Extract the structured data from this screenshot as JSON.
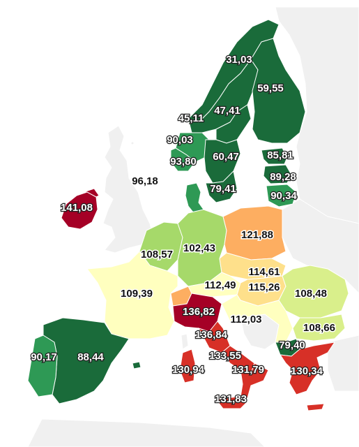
{
  "colors": {
    "background": "#ffffff",
    "non_data_land": "#f0f0f0",
    "border": "#ffffff",
    "dark_green": "#1a6b3a",
    "mid_green": "#2e9955",
    "light_green": "#a6d96a",
    "yellow_green": "#d9ef8b",
    "pale_yellow": "#ffffbf",
    "light_orange": "#fee08b",
    "orange": "#fdae61",
    "red": "#d73027",
    "dark_red": "#a50026"
  },
  "regions": [
    {
      "id": "norway",
      "value": "31,03",
      "color": "#1a6b3a"
    },
    {
      "id": "finland",
      "value": "59,55",
      "color": "#1a6b3a"
    },
    {
      "id": "sweden-north",
      "value": "45,11",
      "color": "#1a6b3a"
    },
    {
      "id": "sweden-mid",
      "value": "47,41",
      "color": "#1a6b3a"
    },
    {
      "id": "norway-south",
      "value": "90,03",
      "color": "#2e9955"
    },
    {
      "id": "norway-southwest",
      "value": "93,80",
      "color": "#2e9955"
    },
    {
      "id": "sweden-south",
      "value": "60,47",
      "color": "#1a6b3a"
    },
    {
      "id": "estonia",
      "value": "85,81",
      "color": "#1a6b3a"
    },
    {
      "id": "latvia",
      "value": "89,28",
      "color": "#1a6b3a"
    },
    {
      "id": "lithuania",
      "value": "90,34",
      "color": "#2e9955"
    },
    {
      "id": "denmark",
      "value": "79,41",
      "color": "#2e9955"
    },
    {
      "id": "uk",
      "value": "96,18",
      "color": "#f0f0f0"
    },
    {
      "id": "ireland",
      "value": "141,08",
      "color": "#a50026"
    },
    {
      "id": "poland",
      "value": "121,88",
      "color": "#fdae61"
    },
    {
      "id": "netherlands-belgium",
      "value": "108,57",
      "color": "#a6d96a"
    },
    {
      "id": "germany",
      "value": "102,43",
      "color": "#a6d96a"
    },
    {
      "id": "czechia-slovakia",
      "value": "114,61",
      "color": "#fee08b"
    },
    {
      "id": "hungary",
      "value": "115,26",
      "color": "#fee08b"
    },
    {
      "id": "austria",
      "value": "112,49",
      "color": "#ffffbf"
    },
    {
      "id": "romania",
      "value": "108,48",
      "color": "#d9ef8b"
    },
    {
      "id": "france",
      "value": "109,39",
      "color": "#ffffbf"
    },
    {
      "id": "switzerland",
      "value": "",
      "color": "#fdae61"
    },
    {
      "id": "italy-north",
      "value": "136,82",
      "color": "#a50026"
    },
    {
      "id": "italy-central",
      "value": "136,84",
      "color": "#d73027"
    },
    {
      "id": "croatia-balkans",
      "value": "112,03",
      "color": "#ffffbf"
    },
    {
      "id": "bulgaria",
      "value": "108,66",
      "color": "#d9ef8b"
    },
    {
      "id": "north-macedonia",
      "value": "79,40",
      "color": "#1a6b3a"
    },
    {
      "id": "italy-south",
      "value": "133,55",
      "color": "#d73027"
    },
    {
      "id": "sardinia",
      "value": "130,94",
      "color": "#d73027"
    },
    {
      "id": "italy-calabria",
      "value": "131,79",
      "color": "#d73027"
    },
    {
      "id": "greece",
      "value": "130,34",
      "color": "#d73027"
    },
    {
      "id": "sicily",
      "value": "131,83",
      "color": "#d73027"
    },
    {
      "id": "portugal",
      "value": "90,17",
      "color": "#2e9955"
    },
    {
      "id": "spain",
      "value": "88,44",
      "color": "#1a6b3a"
    }
  ]
}
